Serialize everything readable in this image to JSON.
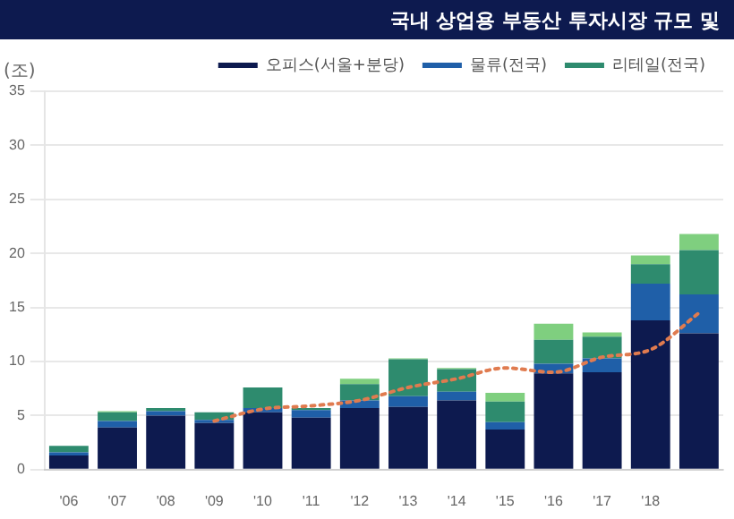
{
  "chart_data": {
    "type": "bar",
    "title": "국내 상업용 부동산 투자시장 규모 및",
    "ylabel": "(조)",
    "categories": [
      "'06",
      "'07",
      "'08",
      "'09",
      "'10",
      "'11",
      "'12",
      "'13",
      "'14",
      "'15",
      "'16",
      "'17",
      "'18",
      null
    ],
    "stacked": true,
    "ylim": [
      0,
      35
    ],
    "yticks": [
      0,
      5,
      10,
      15,
      20,
      25,
      30,
      35
    ],
    "grid": "y",
    "legend": "top right",
    "series": [
      {
        "name": "오피스(서울+분당)",
        "color": "#0d1a4f",
        "values": [
          1.3,
          3.9,
          5.0,
          4.3,
          5.3,
          4.8,
          5.7,
          5.8,
          6.4,
          3.7,
          8.9,
          9.0,
          13.8,
          12.6
        ]
      },
      {
        "name": "물류(전국)",
        "color": "#1f5fa8",
        "values": [
          0.3,
          0.6,
          0.4,
          0.3,
          0.4,
          0.7,
          0.7,
          1.0,
          0.8,
          0.7,
          0.9,
          1.3,
          3.4,
          3.6
        ]
      },
      {
        "name": "리테일(전국)",
        "color": "#2e8b6e",
        "values": [
          0.6,
          0.8,
          0.3,
          0.7,
          1.9,
          0.2,
          1.5,
          3.4,
          2.1,
          1.9,
          2.2,
          2.0,
          1.8,
          4.1
        ]
      },
      {
        "color": "#7fcf7f",
        "values": [
          0,
          0.1,
          0,
          0,
          0,
          0,
          0.5,
          0.1,
          0.1,
          0.8,
          1.5,
          0.4,
          0.8,
          1.5
        ]
      },
      {
        "type": "line",
        "color": "#e07b4f",
        "line_style": "dotted",
        "marker": "none",
        "values": [
          null,
          null,
          null,
          4.5,
          5.6,
          5.9,
          6.4,
          7.6,
          8.4,
          9.4,
          9.0,
          10.4,
          11.1,
          14.5
        ]
      }
    ]
  }
}
